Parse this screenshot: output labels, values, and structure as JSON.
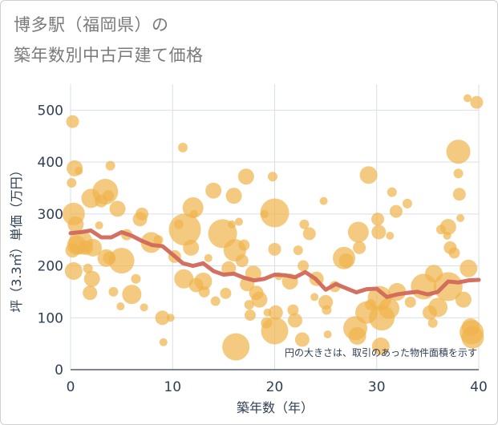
{
  "title_line1": "博多駅（福岡県）の",
  "title_line2": "築年数別中古戸建て価格",
  "colors": {
    "bubble": "#f0b44c",
    "line": "#d2685a",
    "grid": "#d9dfe6",
    "text": "#2f3f55"
  },
  "chart_data": {
    "type": "scatter",
    "title": "博多駅（福岡県）の築年数別中古戸建て価格",
    "xlabel": "築年数（年）",
    "ylabel": "坪（3.3㎡）単価（万円）",
    "xlim": [
      0,
      40
    ],
    "ylim": [
      0,
      550
    ],
    "xticks": [
      0,
      10,
      20,
      30,
      40
    ],
    "yticks": [
      0,
      100,
      200,
      300,
      400,
      500
    ],
    "grid": true,
    "note": "円の大きさは、取引のあった物件面積を示す",
    "scatter": [
      {
        "x": 0.2,
        "y": 478,
        "s": 8
      },
      {
        "x": 0.4,
        "y": 388,
        "s": 10
      },
      {
        "x": 0.1,
        "y": 360,
        "s": 6
      },
      {
        "x": 0.3,
        "y": 300,
        "s": 14
      },
      {
        "x": 0.5,
        "y": 280,
        "s": 10
      },
      {
        "x": 0.2,
        "y": 230,
        "s": 9
      },
      {
        "x": 0.6,
        "y": 240,
        "s": 12
      },
      {
        "x": 0.3,
        "y": 190,
        "s": 11
      },
      {
        "x": 0.8,
        "y": 383,
        "s": 5
      },
      {
        "x": 1.0,
        "y": 245,
        "s": 15
      },
      {
        "x": 1.5,
        "y": 235,
        "s": 9
      },
      {
        "x": 1.7,
        "y": 195,
        "s": 6
      },
      {
        "x": 2.0,
        "y": 330,
        "s": 12
      },
      {
        "x": 2.2,
        "y": 235,
        "s": 11
      },
      {
        "x": 2.1,
        "y": 175,
        "s": 10
      },
      {
        "x": 1.9,
        "y": 148,
        "s": 9
      },
      {
        "x": 2.8,
        "y": 278,
        "s": 5
      },
      {
        "x": 3.0,
        "y": 325,
        "s": 8
      },
      {
        "x": 3.4,
        "y": 343,
        "s": 16
      },
      {
        "x": 3.7,
        "y": 335,
        "s": 7
      },
      {
        "x": 3.9,
        "y": 393,
        "s": 6
      },
      {
        "x": 3.5,
        "y": 215,
        "s": 11
      },
      {
        "x": 3.8,
        "y": 215,
        "s": 8
      },
      {
        "x": 4.2,
        "y": 150,
        "s": 6
      },
      {
        "x": 4.6,
        "y": 310,
        "s": 10
      },
      {
        "x": 5.0,
        "y": 210,
        "s": 16
      },
      {
        "x": 4.9,
        "y": 122,
        "s": 5
      },
      {
        "x": 5.5,
        "y": 260,
        "s": 7
      },
      {
        "x": 6.0,
        "y": 145,
        "s": 12
      },
      {
        "x": 6.4,
        "y": 175,
        "s": 6
      },
      {
        "x": 6.8,
        "y": 290,
        "s": 9
      },
      {
        "x": 7.0,
        "y": 300,
        "s": 8
      },
      {
        "x": 7.2,
        "y": 120,
        "s": 5
      },
      {
        "x": 7.9,
        "y": 245,
        "s": 13
      },
      {
        "x": 8.6,
        "y": 250,
        "s": 6
      },
      {
        "x": 9.0,
        "y": 100,
        "s": 9
      },
      {
        "x": 9.1,
        "y": 53,
        "s": 5
      },
      {
        "x": 9.8,
        "y": 100,
        "s": 5
      },
      {
        "x": 10.2,
        "y": 218,
        "s": 8
      },
      {
        "x": 10.6,
        "y": 280,
        "s": 6
      },
      {
        "x": 11.0,
        "y": 428,
        "s": 6
      },
      {
        "x": 11.2,
        "y": 270,
        "s": 20
      },
      {
        "x": 11.1,
        "y": 175,
        "s": 12
      },
      {
        "x": 11.8,
        "y": 235,
        "s": 10
      },
      {
        "x": 12.0,
        "y": 312,
        "s": 13
      },
      {
        "x": 12.1,
        "y": 300,
        "s": 5
      },
      {
        "x": 12.3,
        "y": 163,
        "s": 9
      },
      {
        "x": 13.0,
        "y": 170,
        "s": 11
      },
      {
        "x": 13.1,
        "y": 150,
        "s": 7
      },
      {
        "x": 13.5,
        "y": 215,
        "s": 5
      },
      {
        "x": 14.0,
        "y": 345,
        "s": 10
      },
      {
        "x": 14.2,
        "y": 132,
        "s": 6
      },
      {
        "x": 14.9,
        "y": 262,
        "s": 18
      },
      {
        "x": 15.2,
        "y": 147,
        "s": 7
      },
      {
        "x": 15.5,
        "y": 195,
        "s": 9
      },
      {
        "x": 15.8,
        "y": 280,
        "s": 5
      },
      {
        "x": 16.0,
        "y": 335,
        "s": 10
      },
      {
        "x": 16.1,
        "y": 230,
        "s": 14
      },
      {
        "x": 16.2,
        "y": 44,
        "s": 17
      },
      {
        "x": 16.5,
        "y": 285,
        "s": 5
      },
      {
        "x": 16.8,
        "y": 210,
        "s": 8
      },
      {
        "x": 17.0,
        "y": 240,
        "s": 7
      },
      {
        "x": 17.2,
        "y": 372,
        "s": 10
      },
      {
        "x": 17.3,
        "y": 165,
        "s": 9
      },
      {
        "x": 17.5,
        "y": 125,
        "s": 6
      },
      {
        "x": 17.6,
        "y": 105,
        "s": 7
      },
      {
        "x": 17.9,
        "y": 185,
        "s": 10
      },
      {
        "x": 18.2,
        "y": 148,
        "s": 9
      },
      {
        "x": 18.5,
        "y": 135,
        "s": 10
      },
      {
        "x": 19.0,
        "y": 300,
        "s": 5
      },
      {
        "x": 19.2,
        "y": 90,
        "s": 7
      },
      {
        "x": 19.3,
        "y": 110,
        "s": 5
      },
      {
        "x": 19.8,
        "y": 372,
        "s": 6
      },
      {
        "x": 20.0,
        "y": 302,
        "s": 18
      },
      {
        "x": 20.0,
        "y": 232,
        "s": 8
      },
      {
        "x": 20.0,
        "y": 75,
        "s": 17
      },
      {
        "x": 20.1,
        "y": 110,
        "s": 9
      },
      {
        "x": 20.4,
        "y": 180,
        "s": 5
      },
      {
        "x": 21.5,
        "y": 170,
        "s": 10
      },
      {
        "x": 21.8,
        "y": 115,
        "s": 7
      },
      {
        "x": 22.0,
        "y": 95,
        "s": 9
      },
      {
        "x": 22.3,
        "y": 230,
        "s": 6
      },
      {
        "x": 22.7,
        "y": 58,
        "s": 9
      },
      {
        "x": 22.8,
        "y": 200,
        "s": 7
      },
      {
        "x": 22.9,
        "y": 280,
        "s": 6
      },
      {
        "x": 23.4,
        "y": 262,
        "s": 8
      },
      {
        "x": 23.9,
        "y": 140,
        "s": 5
      },
      {
        "x": 24.1,
        "y": 175,
        "s": 9
      },
      {
        "x": 24.8,
        "y": 325,
        "s": 5
      },
      {
        "x": 25.0,
        "y": 130,
        "s": 9
      },
      {
        "x": 25.1,
        "y": 115,
        "s": 6
      },
      {
        "x": 25.2,
        "y": 68,
        "s": 5
      },
      {
        "x": 25.9,
        "y": 160,
        "s": 7
      },
      {
        "x": 26.8,
        "y": 215,
        "s": 14
      },
      {
        "x": 27.0,
        "y": 210,
        "s": 9
      },
      {
        "x": 27.9,
        "y": 80,
        "s": 15
      },
      {
        "x": 28.1,
        "y": 65,
        "s": 11
      },
      {
        "x": 28.2,
        "y": 265,
        "s": 13
      },
      {
        "x": 28.3,
        "y": 235,
        "s": 8
      },
      {
        "x": 29.0,
        "y": 110,
        "s": 14
      },
      {
        "x": 29.2,
        "y": 375,
        "s": 11
      },
      {
        "x": 29.4,
        "y": 125,
        "s": 7
      },
      {
        "x": 30.1,
        "y": 290,
        "s": 8
      },
      {
        "x": 30.2,
        "y": 265,
        "s": 9
      },
      {
        "x": 30.3,
        "y": 138,
        "s": 15
      },
      {
        "x": 30.5,
        "y": 100,
        "s": 16
      },
      {
        "x": 30.4,
        "y": 45,
        "s": 11
      },
      {
        "x": 31.2,
        "y": 118,
        "s": 13
      },
      {
        "x": 31.3,
        "y": 258,
        "s": 5
      },
      {
        "x": 31.5,
        "y": 342,
        "s": 6
      },
      {
        "x": 31.9,
        "y": 305,
        "s": 8
      },
      {
        "x": 32.0,
        "y": 150,
        "s": 11
      },
      {
        "x": 33.0,
        "y": 320,
        "s": 6
      },
      {
        "x": 33.3,
        "y": 130,
        "s": 7
      },
      {
        "x": 34.6,
        "y": 160,
        "s": 16
      },
      {
        "x": 35.2,
        "y": 110,
        "s": 9
      },
      {
        "x": 35.5,
        "y": 90,
        "s": 6
      },
      {
        "x": 35.6,
        "y": 185,
        "s": 11
      },
      {
        "x": 36.0,
        "y": 120,
        "s": 12
      },
      {
        "x": 36.3,
        "y": 270,
        "s": 6
      },
      {
        "x": 36.9,
        "y": 258,
        "s": 5
      },
      {
        "x": 37.0,
        "y": 275,
        "s": 10
      },
      {
        "x": 37.2,
        "y": 235,
        "s": 8
      },
      {
        "x": 37.0,
        "y": 160,
        "s": 18
      },
      {
        "x": 37.6,
        "y": 225,
        "s": 7
      },
      {
        "x": 38.0,
        "y": 420,
        "s": 15
      },
      {
        "x": 38.0,
        "y": 378,
        "s": 6
      },
      {
        "x": 38.1,
        "y": 338,
        "s": 8
      },
      {
        "x": 38.2,
        "y": 292,
        "s": 5
      },
      {
        "x": 38.5,
        "y": 135,
        "s": 10
      },
      {
        "x": 38.9,
        "y": 523,
        "s": 5
      },
      {
        "x": 39.0,
        "y": 195,
        "s": 11
      },
      {
        "x": 39.2,
        "y": 82,
        "s": 11
      },
      {
        "x": 39.3,
        "y": 72,
        "s": 15
      },
      {
        "x": 39.4,
        "y": 62,
        "s": 14
      },
      {
        "x": 39.8,
        "y": 515,
        "s": 8
      }
    ],
    "series": [
      {
        "x": [
          0,
          1,
          2,
          3,
          4,
          5,
          6,
          7,
          8,
          9,
          10,
          11,
          12,
          13,
          14,
          15,
          16,
          17,
          18,
          19,
          20,
          21,
          22,
          23,
          24,
          25,
          26,
          27,
          28,
          29,
          30,
          31,
          32,
          33,
          34,
          35,
          36,
          37,
          38,
          39,
          40
        ],
        "values": [
          263,
          265,
          268,
          255,
          255,
          265,
          258,
          248,
          240,
          238,
          222,
          205,
          200,
          205,
          190,
          183,
          185,
          177,
          172,
          175,
          183,
          182,
          178,
          188,
          175,
          154,
          165,
          157,
          149,
          155,
          156,
          140,
          145,
          148,
          150,
          145,
          150,
          170,
          168,
          172,
          173
        ]
      }
    ]
  }
}
